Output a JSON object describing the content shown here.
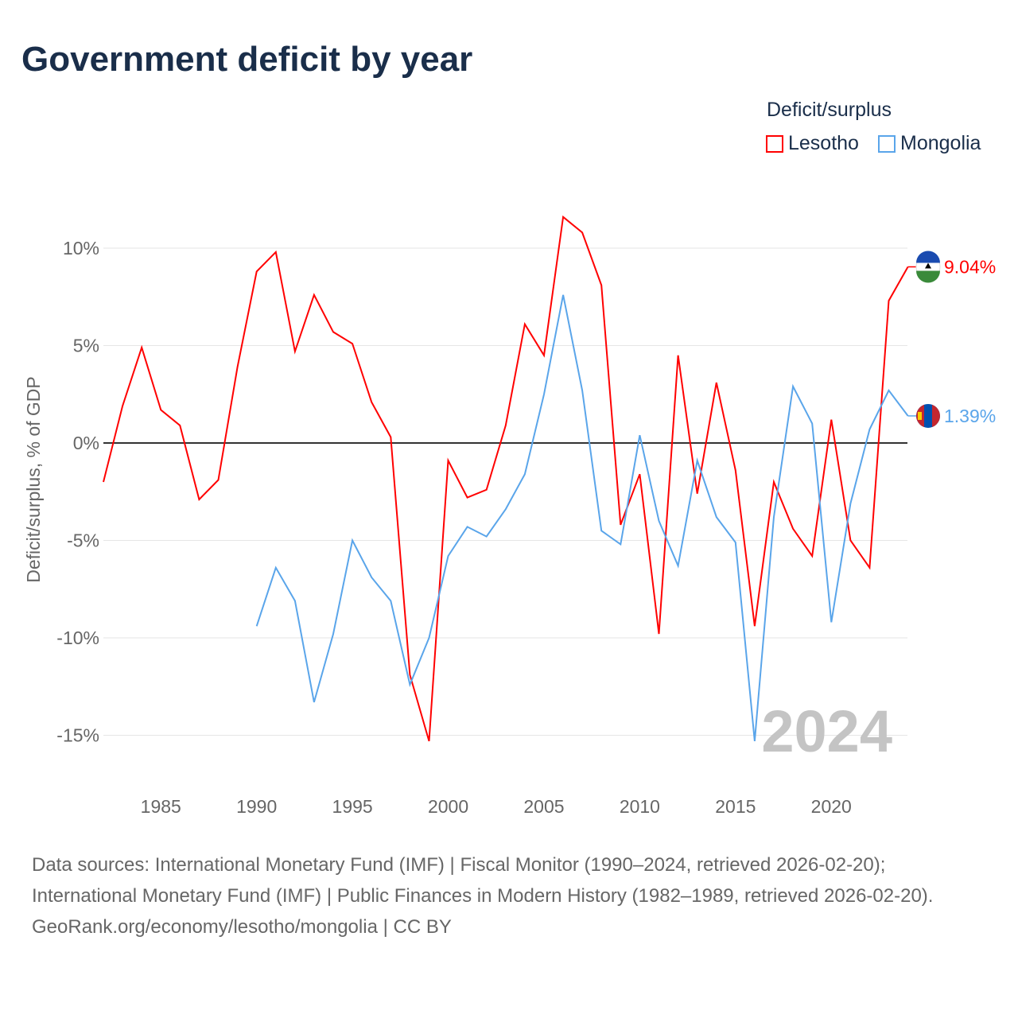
{
  "title": "Government deficit by year",
  "legend": {
    "title": "Deficit/surplus",
    "items": [
      {
        "name": "Lesotho",
        "color": "#ff0000"
      },
      {
        "name": "Mongolia",
        "color": "#5aa5ea"
      }
    ]
  },
  "sources": {
    "line1": "Data sources: International Monetary Fund (IMF) | Fiscal Monitor (1990–2024, retrieved 2026-02-20); International Monetary Fund (IMF) | Public Finances in Modern History (1982–1989, retrieved 2026-02-20).",
    "line2": "GeoRank.org/economy/lesotho/mongolia | CC BY"
  },
  "chart_data": {
    "type": "line",
    "title": "Government deficit by year",
    "ylabel": "Deficit/surplus, % of GDP",
    "xlabel": "",
    "xlim": [
      1982,
      2024
    ],
    "ylim": [
      -17,
      13
    ],
    "yticks": [
      10,
      5,
      0,
      -5,
      -10,
      -15
    ],
    "ytick_labels": [
      "10%",
      "5%",
      "0%",
      "-5%",
      "-10%",
      "-15%"
    ],
    "xticks": [
      1985,
      1990,
      1995,
      2000,
      2005,
      2010,
      2015,
      2020
    ],
    "year_watermark": "2024",
    "series": [
      {
        "name": "Lesotho",
        "color": "#ff0000",
        "start_year": 1982,
        "end_label": "9.04%",
        "values": [
          -2.0,
          1.9,
          4.9,
          1.7,
          0.9,
          -2.9,
          -1.9,
          3.9,
          8.8,
          9.8,
          4.7,
          7.6,
          5.7,
          5.1,
          2.1,
          0.3,
          -11.9,
          -15.3,
          -0.9,
          -2.8,
          -2.4,
          0.9,
          6.1,
          4.5,
          11.6,
          10.8,
          8.1,
          -4.2,
          -1.6,
          -9.8,
          4.5,
          -2.6,
          3.1,
          -1.4,
          -9.4,
          -2.0,
          -4.4,
          -5.8,
          1.2,
          -5.0,
          -6.4,
          7.3,
          9.04
        ]
      },
      {
        "name": "Mongolia",
        "color": "#5aa5ea",
        "start_year": 1990,
        "end_label": "1.39%",
        "values": [
          -9.4,
          -6.4,
          -8.1,
          -13.3,
          -9.8,
          -5.0,
          -6.9,
          -8.1,
          -12.4,
          -10.0,
          -5.8,
          -4.3,
          -4.8,
          -3.4,
          -1.6,
          2.5,
          7.6,
          2.7,
          -4.5,
          -5.2,
          0.4,
          -4.0,
          -6.3,
          -0.9,
          -3.8,
          -5.1,
          -15.3,
          -3.8,
          2.9,
          1.0,
          -9.2,
          -3.1,
          0.7,
          2.7,
          1.39
        ]
      }
    ]
  }
}
